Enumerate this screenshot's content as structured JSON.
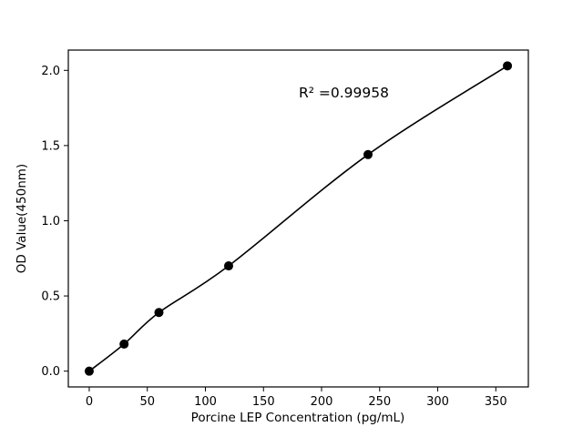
{
  "chart_data": {
    "type": "scatter",
    "x": [
      0,
      30,
      60,
      120,
      240,
      360
    ],
    "y": [
      0.0,
      0.18,
      0.39,
      0.7,
      1.44,
      2.03
    ],
    "title": "",
    "xlabel": "Porcine LEP Concentration (pg/mL)",
    "ylabel": "OD Value(450nm)",
    "annotation": "R² =0.99958",
    "xlim": [
      -18,
      378
    ],
    "ylim": [
      -0.105,
      2.135
    ],
    "xticks": [
      0,
      50,
      100,
      150,
      200,
      250,
      300,
      350
    ],
    "xtick_labels": [
      "0",
      "50",
      "100",
      "150",
      "200",
      "250",
      "300",
      "350"
    ],
    "yticks": [
      0.0,
      0.5,
      1.0,
      1.5,
      2.0
    ],
    "ytick_labels": [
      "0.0",
      "0.5",
      "1.0",
      "1.5",
      "2.0"
    ],
    "grid": false,
    "legend": null,
    "line_color": "#000000",
    "marker_color": "#000000",
    "background_color": "#ffffff"
  }
}
